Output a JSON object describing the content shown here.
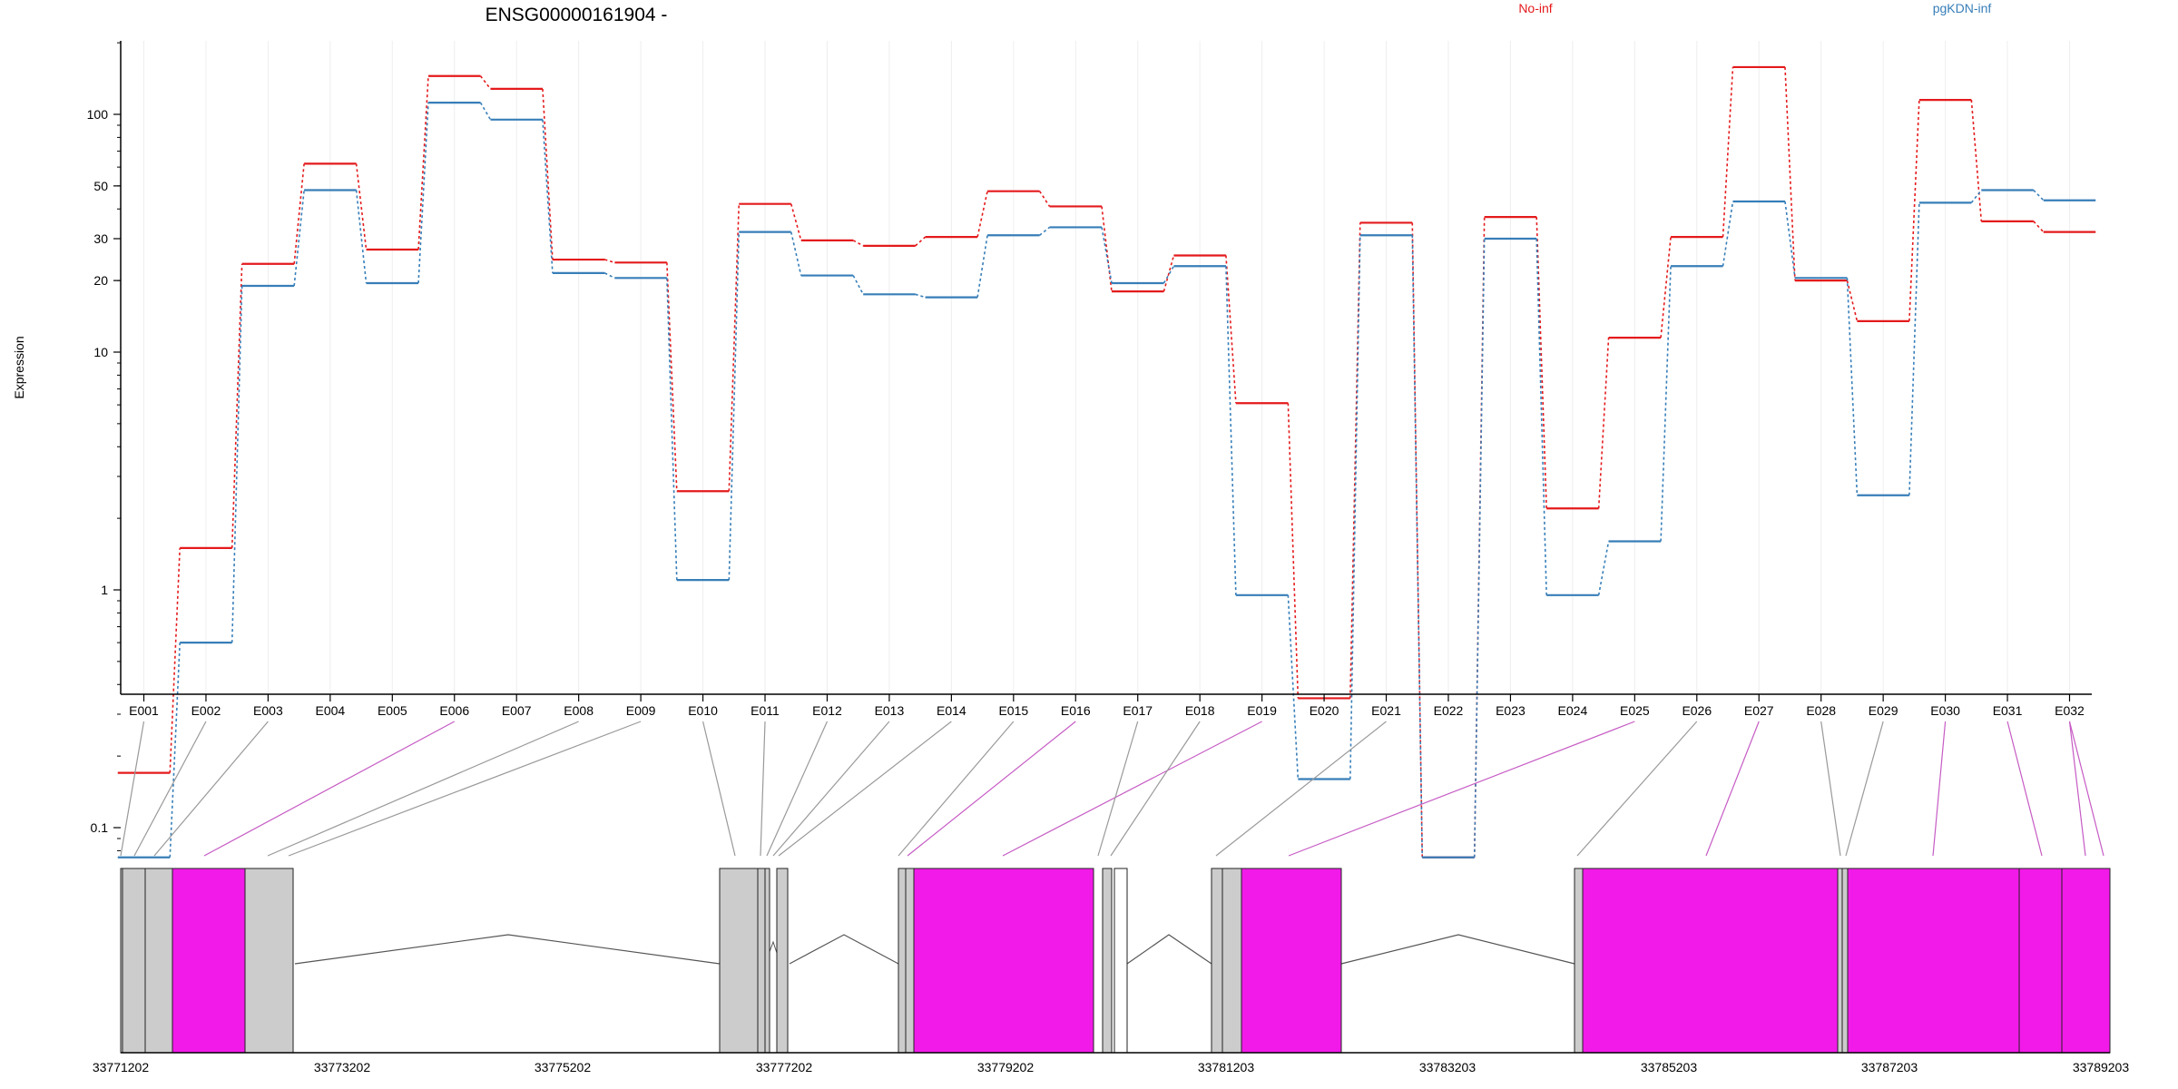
{
  "chart_data": {
    "type": "line",
    "title": "ENSG00000161904 -",
    "ylabel": "Expression",
    "yscale": "log",
    "ylim": [
      0.075,
      200
    ],
    "yticks": [
      "0.1",
      "1",
      "10",
      "20",
      "30",
      "50",
      "100"
    ],
    "categories": [
      "E001",
      "E002",
      "E003",
      "E004",
      "E005",
      "E006",
      "E007",
      "E008",
      "E009",
      "E010",
      "E011",
      "E012",
      "E013",
      "E014",
      "E015",
      "E016",
      "E017",
      "E018",
      "E019",
      "E020",
      "E021",
      "E022",
      "E023",
      "E024",
      "E025",
      "E026",
      "E027",
      "E028",
      "E029",
      "E030",
      "E031",
      "E032"
    ],
    "series": [
      {
        "name": "No-inf",
        "color": "#e41a1c",
        "values": [
          0.17,
          1.5,
          23.5,
          62,
          27,
          145,
          128,
          24.5,
          23.8,
          2.6,
          42,
          29.5,
          28,
          30.5,
          47.5,
          41,
          18,
          25.5,
          6.1,
          0.35,
          35,
          0.075,
          37,
          2.2,
          11.5,
          30.5,
          158,
          20,
          13.5,
          115,
          35.5,
          32
        ]
      },
      {
        "name": "pgKDN-inf",
        "color": "#377eb8",
        "values": [
          0.075,
          0.6,
          19,
          48,
          19.5,
          112,
          95,
          21.5,
          20.5,
          1.1,
          32,
          21,
          17.5,
          17,
          31,
          33.5,
          19.5,
          23,
          0.95,
          0.16,
          31,
          0.075,
          30,
          0.95,
          1.6,
          23,
          43,
          20.5,
          2.5,
          42.5,
          48,
          43.5
        ]
      }
    ],
    "legend": "top"
  },
  "gene_model": {
    "genomic_coords": [
      "33771202",
      "33773202",
      "33775202",
      "33777202",
      "33779202",
      "33781203",
      "33783203",
      "33785203",
      "33787203",
      "33789203"
    ],
    "colors": {
      "exon_default": "#cccccc",
      "exon_highlight": "#f21ae8",
      "connector_default": "#999999",
      "connector_highlight": "#c65bc4"
    }
  }
}
